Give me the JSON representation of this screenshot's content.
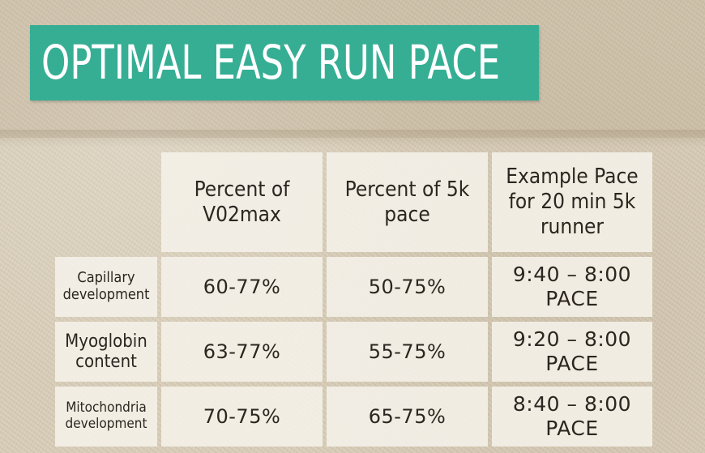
{
  "title": "OPTIMAL EASY RUN PACE",
  "table": {
    "headers": [
      [
        "Percent of",
        "V02max"
      ],
      [
        "Percent of 5k",
        "pace"
      ],
      [
        "Example Pace",
        "for 20 min 5k",
        "runner"
      ]
    ],
    "rows": [
      {
        "label": [
          "Capillary",
          "development"
        ],
        "vo2max": "60-77%",
        "pace_5k": "50-75%",
        "example": [
          "9:40 – 8:00",
          "PACE"
        ]
      },
      {
        "label": [
          "Myoglobin",
          "content"
        ],
        "vo2max": "63-77%",
        "pace_5k": "55-75%",
        "example": [
          "9:20 – 8:00",
          "PACE"
        ]
      },
      {
        "label": [
          "Mitochondria",
          "development"
        ],
        "vo2max": "70-75%",
        "pace_5k": "65-75%",
        "example": [
          "8:40 – 8:00",
          "PACE"
        ]
      }
    ]
  },
  "colors": {
    "title_background": "#36ae94",
    "title_text": "#ffffff",
    "cell_background": "#f5f1e9",
    "text": "#2c2520"
  }
}
